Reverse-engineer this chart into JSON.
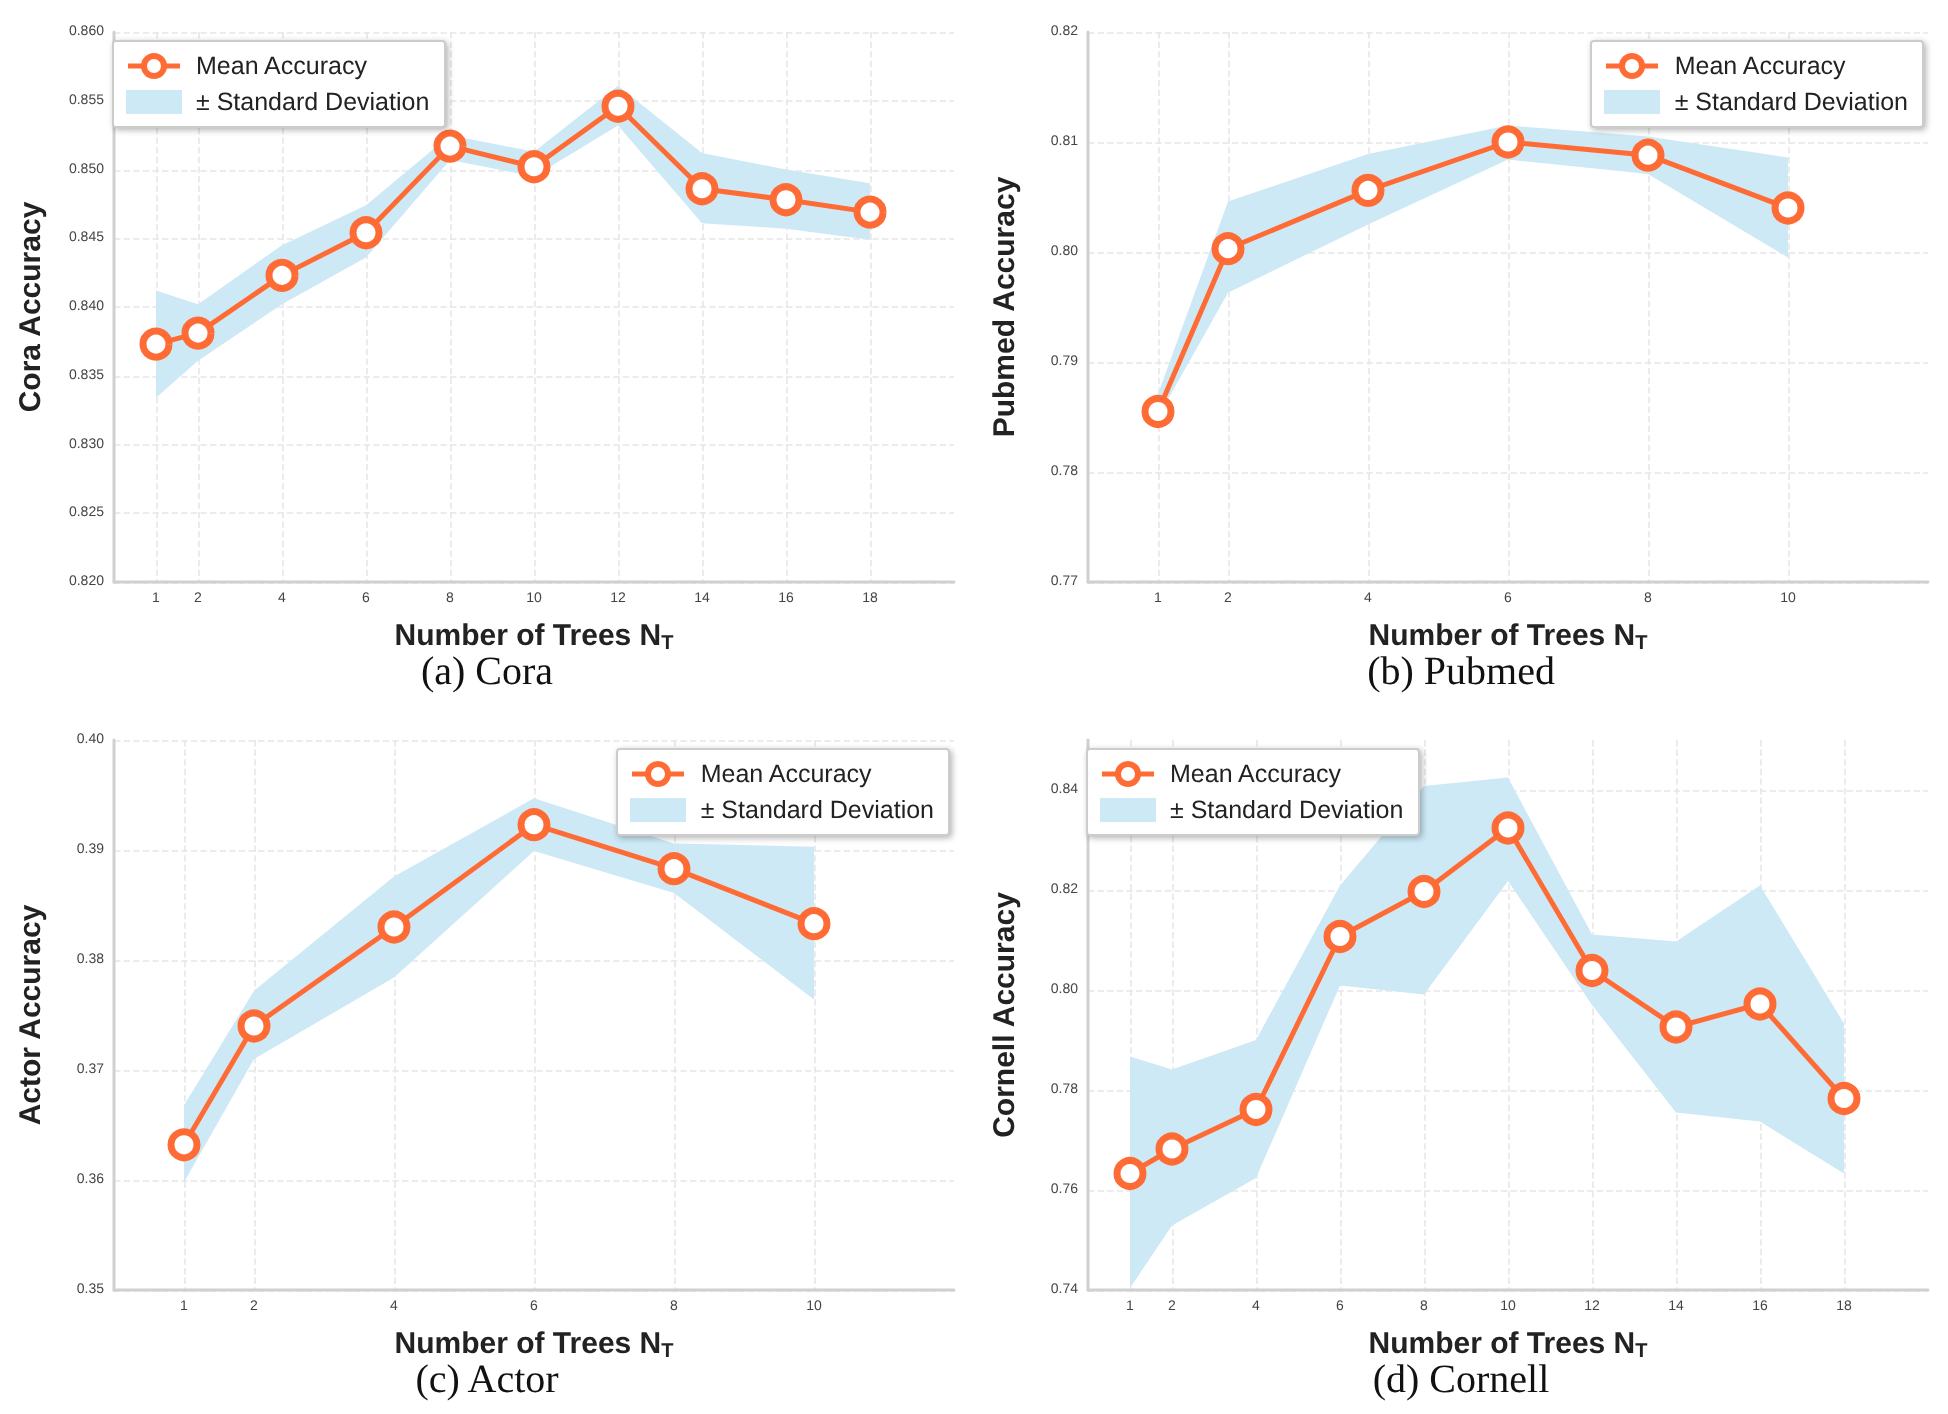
{
  "chart_data": [
    {
      "type": "line",
      "title": "(a) Cora",
      "xlabel": "Number of Trees N$_{T}$",
      "ylabel": "Cora Accuracy",
      "annotations": [
        "± Standard Deviation"
      ],
      "x": [
        1,
        2,
        4,
        6,
        8,
        10,
        12,
        14,
        16,
        18
      ],
      "xlim": [
        0,
        20
      ],
      "xticks": [
        1,
        2,
        4,
        6,
        8,
        10,
        12,
        14,
        16,
        18
      ],
      "ylim": [
        0.82,
        0.86
      ],
      "yticks": [
        {
          "value": 0.82,
          "label": "0.820"
        },
        0.825,
        {
          "value": 0.83,
          "label": "0.830"
        },
        0.835,
        {
          "value": 0.84,
          "label": "0.840"
        },
        0.845,
        {
          "value": 0.85,
          "label": "0.850"
        },
        0.855,
        {
          "value": 0.86,
          "label": "0.860"
        }
      ],
      "grid": true,
      "legend": "top left",
      "marker": "circle",
      "line_style": "solid",
      "series": [
        {
          "name": "Mean Accuracy",
          "color": "#ff6b35",
          "values": [
            0.8373,
            0.8381,
            0.8423,
            0.8454,
            0.8517,
            0.8502,
            0.8546,
            0.8486,
            0.8478,
            0.8469
          ],
          "lower": [
            0.8334,
            0.8361,
            0.8402,
            0.8436,
            0.8507,
            0.8495,
            0.8532,
            0.8461,
            0.8457,
            0.8449
          ],
          "upper": [
            0.8412,
            0.8402,
            0.8445,
            0.8474,
            0.8525,
            0.8513,
            0.8561,
            0.8512,
            0.85,
            0.849
          ]
        }
      ]
    },
    {
      "type": "line",
      "title": "(b) Pubmed",
      "xlabel": "Number of Trees N$_{T}$",
      "ylabel": "Pubmed Accuracy",
      "annotations": [
        "± Standard Deviation"
      ],
      "x": [
        1,
        2,
        4,
        6,
        8,
        10
      ],
      "xlim": [
        0,
        12
      ],
      "xticks": [
        1,
        2,
        4,
        6,
        8,
        10
      ],
      "ylim": [
        0.77,
        0.82
      ],
      "yticks": [
        0.77,
        0.78,
        0.79,
        {
          "value": 0.8,
          "label": "0.80"
        },
        0.81,
        0.82
      ],
      "grid": true,
      "legend": "top right",
      "marker": "circle",
      "line_style": "solid",
      "series": [
        {
          "name": "Mean Accuracy",
          "color": "#ff6b35",
          "values": [
            0.7855,
            0.8003,
            0.8056,
            0.81,
            0.8088,
            0.804
          ],
          "lower": [
            0.785,
            0.7963,
            0.8025,
            0.8084,
            0.8071,
            0.7995
          ],
          "upper": [
            0.7871,
            0.8046,
            0.8089,
            0.8115,
            0.8105,
            0.8086
          ]
        }
      ]
    },
    {
      "type": "line",
      "title": "(c) Actor",
      "xlabel": "Number of Trees N$_{T}$",
      "ylabel": "Actor Accuracy",
      "annotations": [
        "± Standard Deviation"
      ],
      "x": [
        1,
        2,
        4,
        6,
        8,
        10
      ],
      "xlim": [
        0,
        12
      ],
      "xticks": [
        1,
        2,
        4,
        6,
        8,
        10
      ],
      "ylim": [
        0.35,
        0.4
      ],
      "yticks": [
        0.35,
        0.36,
        0.37,
        0.38,
        0.39,
        {
          "value": 0.4,
          "label": "0.40"
        }
      ],
      "grid": true,
      "legend": "top right",
      "marker": "circle",
      "line_style": "solid",
      "series": [
        {
          "name": "Mean Accuracy",
          "color": "#ff6b35",
          "values": [
            0.3632,
            0.374,
            0.383,
            0.3923,
            0.3883,
            0.3833
          ],
          "lower": [
            0.3598,
            0.371,
            0.3784,
            0.3899,
            0.3861,
            0.3764
          ],
          "upper": [
            0.3668,
            0.3772,
            0.3876,
            0.3947,
            0.3906,
            0.3903
          ]
        }
      ]
    },
    {
      "type": "line",
      "title": "(d) Cornell",
      "xlabel": "Number of Trees N$_{T}$",
      "ylabel": "Cornell Accuracy",
      "annotations": [
        "± Standard Deviation"
      ],
      "x": [
        1,
        2,
        4,
        6,
        8,
        10,
        12,
        14,
        16,
        18
      ],
      "xlim": [
        0,
        20
      ],
      "xticks": [
        1,
        2,
        4,
        6,
        8,
        10,
        12,
        14,
        16,
        18
      ],
      "ylim": [
        0.74,
        0.85
      ],
      "yticks": [
        0.74,
        0.76,
        0.78,
        {
          "value": 0.8,
          "label": "0.80"
        },
        0.82,
        0.84
      ],
      "grid": true,
      "legend": "top left",
      "marker": "circle",
      "line_style": "solid",
      "series": [
        {
          "name": "Mean Accuracy",
          "color": "#ff6b35",
          "values": [
            0.7633,
            0.7682,
            0.7761,
            0.8107,
            0.8197,
            0.8324,
            0.8039,
            0.7926,
            0.7972,
            0.7783
          ],
          "lower": [
            0.7404,
            0.7529,
            0.7624,
            0.8009,
            0.7991,
            0.8218,
            0.797,
            0.7755,
            0.7737,
            0.7633
          ],
          "upper": [
            0.7867,
            0.7841,
            0.79,
            0.8209,
            0.8408,
            0.8425,
            0.8111,
            0.8097,
            0.8209,
            0.7933
          ]
        }
      ]
    }
  ]
}
